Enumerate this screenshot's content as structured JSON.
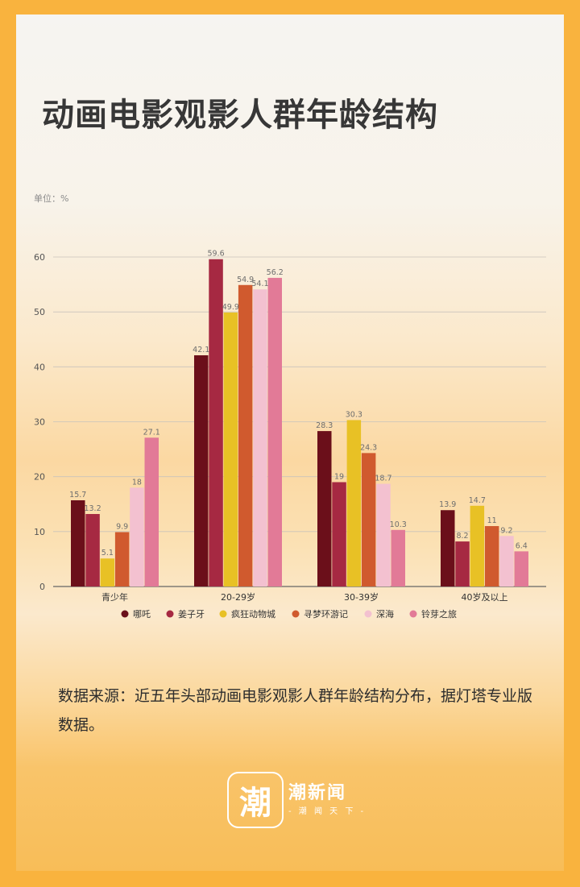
{
  "title": "动画电影观影人群年龄结构",
  "unit_label": "单位：%",
  "colors": [
    "#6b0f1a",
    "#a62942",
    "#e8c125",
    "#d05a2e",
    "#f3c1d0",
    "#e27a97"
  ],
  "chart_data": {
    "type": "bar",
    "title": "动画电影观影人群年龄结构",
    "ylabel": "单位：%",
    "ylim": [
      0,
      60
    ],
    "yticks": [
      0,
      10,
      20,
      30,
      40,
      50,
      60
    ],
    "grid": true,
    "legend_position": "bottom",
    "categories": [
      "青少年",
      "20-29岁",
      "30-39岁",
      "40岁及以上"
    ],
    "series": [
      {
        "name": "哪吒",
        "values": [
          15.7,
          42.1,
          28.3,
          13.9
        ],
        "labels": [
          "15.7",
          "42.1",
          "28.3",
          "13.9"
        ]
      },
      {
        "name": "姜子牙",
        "values": [
          13.2,
          59.6,
          19,
          8.2
        ],
        "labels": [
          "13.2",
          "59.6",
          "19",
          "8.2"
        ]
      },
      {
        "name": "疯狂动物城",
        "values": [
          5.1,
          49.9,
          30.3,
          14.7
        ],
        "labels": [
          "5.1",
          "49.9",
          "30.3",
          "14.7"
        ]
      },
      {
        "name": "寻梦环游记",
        "values": [
          9.9,
          54.9,
          24.3,
          11
        ],
        "labels": [
          "9.9",
          "54.9",
          "24.3",
          "11"
        ]
      },
      {
        "name": "深海",
        "values": [
          18,
          54.1,
          18.7,
          9.2
        ],
        "labels": [
          "18",
          "54.1",
          "18.7",
          "9.2"
        ]
      },
      {
        "name": "铃芽之旅",
        "values": [
          27.1,
          56.2,
          10.3,
          6.4
        ],
        "labels": [
          "27.1",
          "56.2",
          "10.3",
          "6.4"
        ]
      }
    ]
  },
  "source_text": "数据来源：近五年头部动画电影观影人群年龄结构分布，据灯塔专业版数据。",
  "logo": {
    "glyph": "潮",
    "name": "潮新闻",
    "slogan": "- 潮 闻 天 下 -"
  }
}
